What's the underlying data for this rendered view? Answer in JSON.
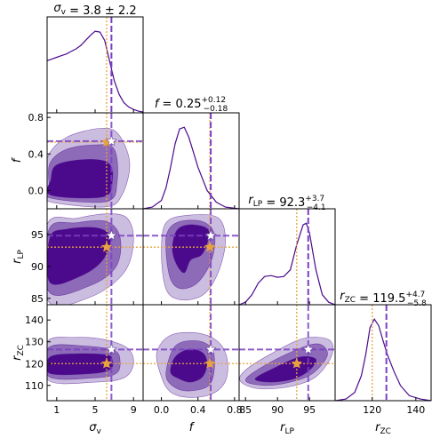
{
  "chart_data": {
    "type": "corner",
    "colors": {
      "line": "#4b0a8c",
      "fill_inner": "#4b0a8c",
      "fill_mid": "#8e6bb8",
      "fill_outer": "#cbbde0",
      "best_fit": "#7b3fc4",
      "reference": "#e8a33d",
      "star_reference": "#e8a33d",
      "star_best": "#ffffff"
    },
    "parameters": [
      {
        "key": "sv",
        "label_main": "σ",
        "label_sub": "v",
        "title": "σv = 3.8 ± 2.2",
        "t_main": "σ",
        "t_sub": "v",
        "t_rest": " = 3.8 ± 2.2",
        "t_sup": "",
        "t_low": "",
        "range": [
          0,
          10
        ],
        "ticks": [
          1,
          5,
          9
        ],
        "tick_labels": [
          "1",
          "5",
          "9"
        ],
        "best": 6.7,
        "ref": 6.2
      },
      {
        "key": "f",
        "label_main": "f",
        "label_sub": "",
        "title": "f = 0.25 +0.12 −0.18",
        "t_main": "f",
        "t_sub": "",
        "t_rest": " = 0.25",
        "t_sup": "+0.12",
        "t_low": "−0.18",
        "range": [
          -0.2,
          0.85
        ],
        "ticks": [
          0.0,
          0.4,
          0.8
        ],
        "tick_labels": [
          "0.0",
          "0.4",
          "0.8"
        ],
        "ytick_labels": [
          "0.0",
          "0.4",
          "0.8"
        ],
        "best": 0.54,
        "ref": 0.53
      },
      {
        "key": "rLP",
        "label_main": "r",
        "label_sub": "LP",
        "title": "rLP = 92.3 +3.7 −4.1",
        "t_main": "r",
        "t_sub": "LP",
        "t_rest": " = 92.3",
        "t_sup": "+3.7",
        "t_low": "−4.1",
        "range": [
          84,
          99
        ],
        "ticks": [
          85,
          90,
          95
        ],
        "tick_labels": [
          "85",
          "90",
          "95"
        ],
        "best": 94.8,
        "ref": 93.0
      },
      {
        "key": "rZC",
        "label_main": "r",
        "label_sub": "ZC",
        "title": "rZC = 119.5 +4.7 −5.8",
        "t_main": "r",
        "t_sub": "ZC",
        "t_rest": " = 119.5",
        "t_sup": "+4.7",
        "t_low": "−5.8",
        "range": [
          103,
          147
        ],
        "ticks": [
          110,
          120,
          130,
          140
        ],
        "tick_labels": [
          "110",
          "120",
          "130",
          "140"
        ],
        "xticks": [
          120,
          140
        ],
        "xtick_labels": [
          "120",
          "140"
        ],
        "best": 126.5,
        "ref": 120.0
      }
    ],
    "marginals": [
      {
        "x": [
          0,
          0.5,
          1,
          1.5,
          2,
          2.5,
          3,
          3.5,
          4,
          4.5,
          5,
          5.5,
          6,
          6.5,
          7,
          7.5,
          8,
          8.5,
          9,
          9.5,
          10
        ],
        "y": [
          0.62,
          0.64,
          0.66,
          0.68,
          0.7,
          0.73,
          0.76,
          0.8,
          0.86,
          0.92,
          0.97,
          0.96,
          0.86,
          0.62,
          0.38,
          0.22,
          0.12,
          0.07,
          0.04,
          0.02,
          0.01
        ]
      },
      {
        "x": [
          -0.2,
          -0.1,
          0.0,
          0.05,
          0.1,
          0.15,
          0.2,
          0.25,
          0.3,
          0.35,
          0.4,
          0.5,
          0.6,
          0.7,
          0.85
        ],
        "y": [
          0.0,
          0.02,
          0.1,
          0.25,
          0.5,
          0.78,
          0.96,
          0.98,
          0.86,
          0.68,
          0.5,
          0.22,
          0.08,
          0.02,
          0.0
        ]
      },
      {
        "x": [
          84,
          85,
          86,
          87,
          88,
          89,
          90,
          91,
          92,
          93,
          94,
          94.5,
          95,
          96,
          97,
          98,
          99
        ],
        "y": [
          0.0,
          0.03,
          0.12,
          0.26,
          0.34,
          0.35,
          0.33,
          0.34,
          0.42,
          0.72,
          0.96,
          0.98,
          0.86,
          0.42,
          0.12,
          0.03,
          0.0
        ]
      },
      {
        "x": [
          103,
          108,
          112,
          115,
          117,
          119,
          121,
          123,
          125,
          127,
          130,
          133,
          137,
          142,
          147
        ],
        "y": [
          0.0,
          0.02,
          0.1,
          0.3,
          0.55,
          0.88,
          0.98,
          0.9,
          0.72,
          0.55,
          0.35,
          0.18,
          0.06,
          0.02,
          0.0
        ]
      }
    ],
    "contours": [
      {
        "row": 1,
        "col": 0,
        "levels": [
          [
            [
              0.2,
              -0.12
            ],
            [
              6.0,
              -0.18
            ],
            [
              7.8,
              -0.05
            ],
            [
              8.6,
              0.3
            ],
            [
              7.4,
              0.62
            ],
            [
              5.5,
              0.68
            ],
            [
              2.0,
              0.58
            ],
            [
              0.0,
              0.35
            ],
            [
              0.0,
              0.0
            ]
          ],
          [
            [
              0.3,
              -0.08
            ],
            [
              6.2,
              -0.12
            ],
            [
              7.3,
              0.1
            ],
            [
              7.0,
              0.45
            ],
            [
              5.0,
              0.5
            ],
            [
              2.0,
              0.45
            ],
            [
              0.3,
              0.3
            ],
            [
              0.2,
              0.05
            ]
          ],
          [
            [
              0.4,
              -0.05
            ],
            [
              5.8,
              -0.07
            ],
            [
              6.8,
              0.1
            ],
            [
              6.4,
              0.3
            ],
            [
              4.0,
              0.34
            ],
            [
              1.0,
              0.28
            ],
            [
              0.4,
              0.12
            ]
          ]
        ]
      },
      {
        "row": 2,
        "col": 0,
        "levels": [
          [
            [
              0.1,
              84.6
            ],
            [
              4.5,
              85.2
            ],
            [
              8.0,
              89.0
            ],
            [
              9.0,
              94.0
            ],
            [
              8.3,
              97.6
            ],
            [
              6.0,
              98.2
            ],
            [
              3.0,
              97.5
            ],
            [
              0.0,
              96.5
            ]
          ],
          [
            [
              0.2,
              86.0
            ],
            [
              4.5,
              87.0
            ],
            [
              7.2,
              90.0
            ],
            [
              7.6,
              94.5
            ],
            [
              6.2,
              97.0
            ],
            [
              3.0,
              96.8
            ],
            [
              0.2,
              95.8
            ]
          ],
          [
            [
              0.3,
              87.5
            ],
            [
              3.5,
              88.5
            ],
            [
              5.8,
              91.0
            ],
            [
              6.6,
              94.5
            ],
            [
              5.2,
              96.0
            ],
            [
              2.0,
              95.8
            ],
            [
              0.3,
              94.5
            ]
          ]
        ]
      },
      {
        "row": 2,
        "col": 1,
        "levels": [
          [
            [
              0.0,
              92.0
            ],
            [
              0.05,
              86.5
            ],
            [
              0.2,
              84.8
            ],
            [
              0.45,
              85.5
            ],
            [
              0.62,
              89.0
            ],
            [
              0.7,
              94.0
            ],
            [
              0.62,
              97.6
            ],
            [
              0.3,
              98.0
            ],
            [
              0.05,
              96.8
            ]
          ],
          [
            [
              0.05,
              92.5
            ],
            [
              0.1,
              88.0
            ],
            [
              0.22,
              86.5
            ],
            [
              0.4,
              87.5
            ],
            [
              0.55,
              91.0
            ],
            [
              0.58,
              95.0
            ],
            [
              0.45,
              97.0
            ],
            [
              0.2,
              97.0
            ],
            [
              0.07,
              95.5
            ]
          ],
          [
            [
              0.12,
              93.0
            ],
            [
              0.16,
              90.5
            ],
            [
              0.25,
              89.0
            ],
            [
              0.32,
              91.0
            ],
            [
              0.45,
              92.0
            ],
            [
              0.52,
              95.5
            ],
            [
              0.35,
              96.5
            ],
            [
              0.18,
              95.8
            ]
          ]
        ]
      },
      {
        "row": 3,
        "col": 0,
        "levels": [
          [
            [
              0.1,
              112.5
            ],
            [
              5.0,
              111.5
            ],
            [
              8.0,
              113.5
            ],
            [
              9.0,
              120.0
            ],
            [
              8.4,
              127.0
            ],
            [
              6.0,
              131.0
            ],
            [
              3.0,
              132.0
            ],
            [
              0.0,
              130.0
            ]
          ],
          [
            [
              0.2,
              114.0
            ],
            [
              5.0,
              113.5
            ],
            [
              7.2,
              115.5
            ],
            [
              7.6,
              121.0
            ],
            [
              7.0,
              126.0
            ],
            [
              4.0,
              128.0
            ],
            [
              0.2,
              127.5
            ]
          ],
          [
            [
              0.3,
              115.5
            ],
            [
              4.8,
              115.5
            ],
            [
              6.6,
              117.5
            ],
            [
              6.8,
              121.5
            ],
            [
              6.2,
              124.0
            ],
            [
              3.0,
              124.5
            ],
            [
              0.3,
              123.0
            ]
          ]
        ]
      },
      {
        "row": 3,
        "col": 1,
        "levels": [
          [
            [
              0.0,
              114.0
            ],
            [
              0.1,
              107.0
            ],
            [
              0.3,
              104.5
            ],
            [
              0.55,
              106.0
            ],
            [
              0.7,
              112.0
            ],
            [
              0.72,
              122.0
            ],
            [
              0.62,
              130.0
            ],
            [
              0.4,
              134.0
            ],
            [
              0.1,
              133.0
            ],
            [
              -0.05,
              125.0
            ]
          ],
          [
            [
              0.05,
              115.0
            ],
            [
              0.15,
              109.0
            ],
            [
              0.32,
              107.5
            ],
            [
              0.52,
              110.0
            ],
            [
              0.58,
              118.0
            ],
            [
              0.55,
              127.0
            ],
            [
              0.38,
              130.5
            ],
            [
              0.15,
              128.0
            ]
          ],
          [
            [
              0.1,
              116.0
            ],
            [
              0.2,
              113.0
            ],
            [
              0.32,
              111.5
            ],
            [
              0.45,
              114.0
            ],
            [
              0.5,
              120.0
            ],
            [
              0.45,
              125.0
            ],
            [
              0.3,
              126.5
            ],
            [
              0.15,
              123.0
            ]
          ]
        ]
      },
      {
        "row": 3,
        "col": 2,
        "levels": [
          [
            [
              84.2,
              112.0
            ],
            [
              87.0,
              108.5
            ],
            [
              92.0,
              109.5
            ],
            [
              96.0,
              114.0
            ],
            [
              98.5,
              124.0
            ],
            [
              98.0,
              131.0
            ],
            [
              94.0,
              131.5
            ],
            [
              89.0,
              124.5
            ],
            [
              85.0,
              117.0
            ]
          ],
          [
            [
              85.0,
              112.5
            ],
            [
              88.0,
              110.0
            ],
            [
              92.0,
              111.5
            ],
            [
              95.5,
              115.5
            ],
            [
              97.8,
              124.0
            ],
            [
              96.5,
              129.0
            ],
            [
              93.5,
              127.0
            ],
            [
              88.5,
              120.0
            ]
          ],
          [
            [
              86.5,
              113.0
            ],
            [
              89.0,
              111.5
            ],
            [
              92.5,
              113.0
            ],
            [
              95.0,
              117.0
            ],
            [
              96.0,
              122.0
            ],
            [
              93.5,
              123.0
            ],
            [
              89.5,
              118.0
            ]
          ]
        ]
      }
    ]
  }
}
